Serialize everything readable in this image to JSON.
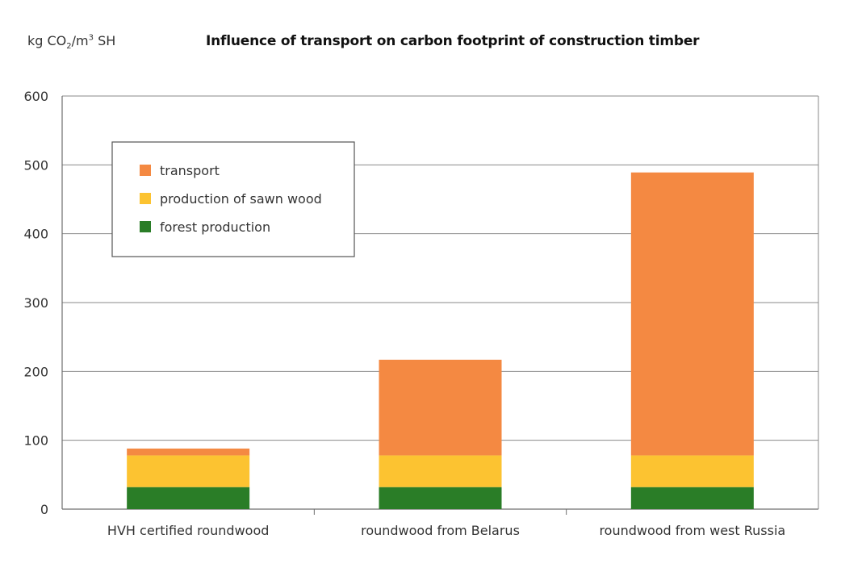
{
  "chart_data": {
    "type": "bar",
    "stacked": true,
    "title": "Influence of transport on carbon footprint of construction timber",
    "ylabel": {
      "prefix": "kg CO",
      "sub": "2",
      "mid": "/m",
      "sup": "3",
      "suffix": " SH"
    },
    "ylim": [
      0,
      600
    ],
    "yticks": [
      0,
      100,
      200,
      300,
      400,
      500,
      600
    ],
    "grid": true,
    "legend_position": "top-left",
    "categories": [
      "HVH certified roundwood",
      "roundwood from Belarus",
      "roundwood from west Russia"
    ],
    "series": [
      {
        "name": "forest production",
        "color": "#2a7d27",
        "values": [
          32,
          32,
          32
        ]
      },
      {
        "name": "production of sawn wood",
        "color": "#fcc331",
        "values": [
          46,
          46,
          46
        ]
      },
      {
        "name": "transport",
        "color": "#f48942",
        "values": [
          10,
          139,
          411
        ]
      }
    ],
    "legend_order": [
      "transport",
      "production of sawn wood",
      "forest production"
    ]
  }
}
